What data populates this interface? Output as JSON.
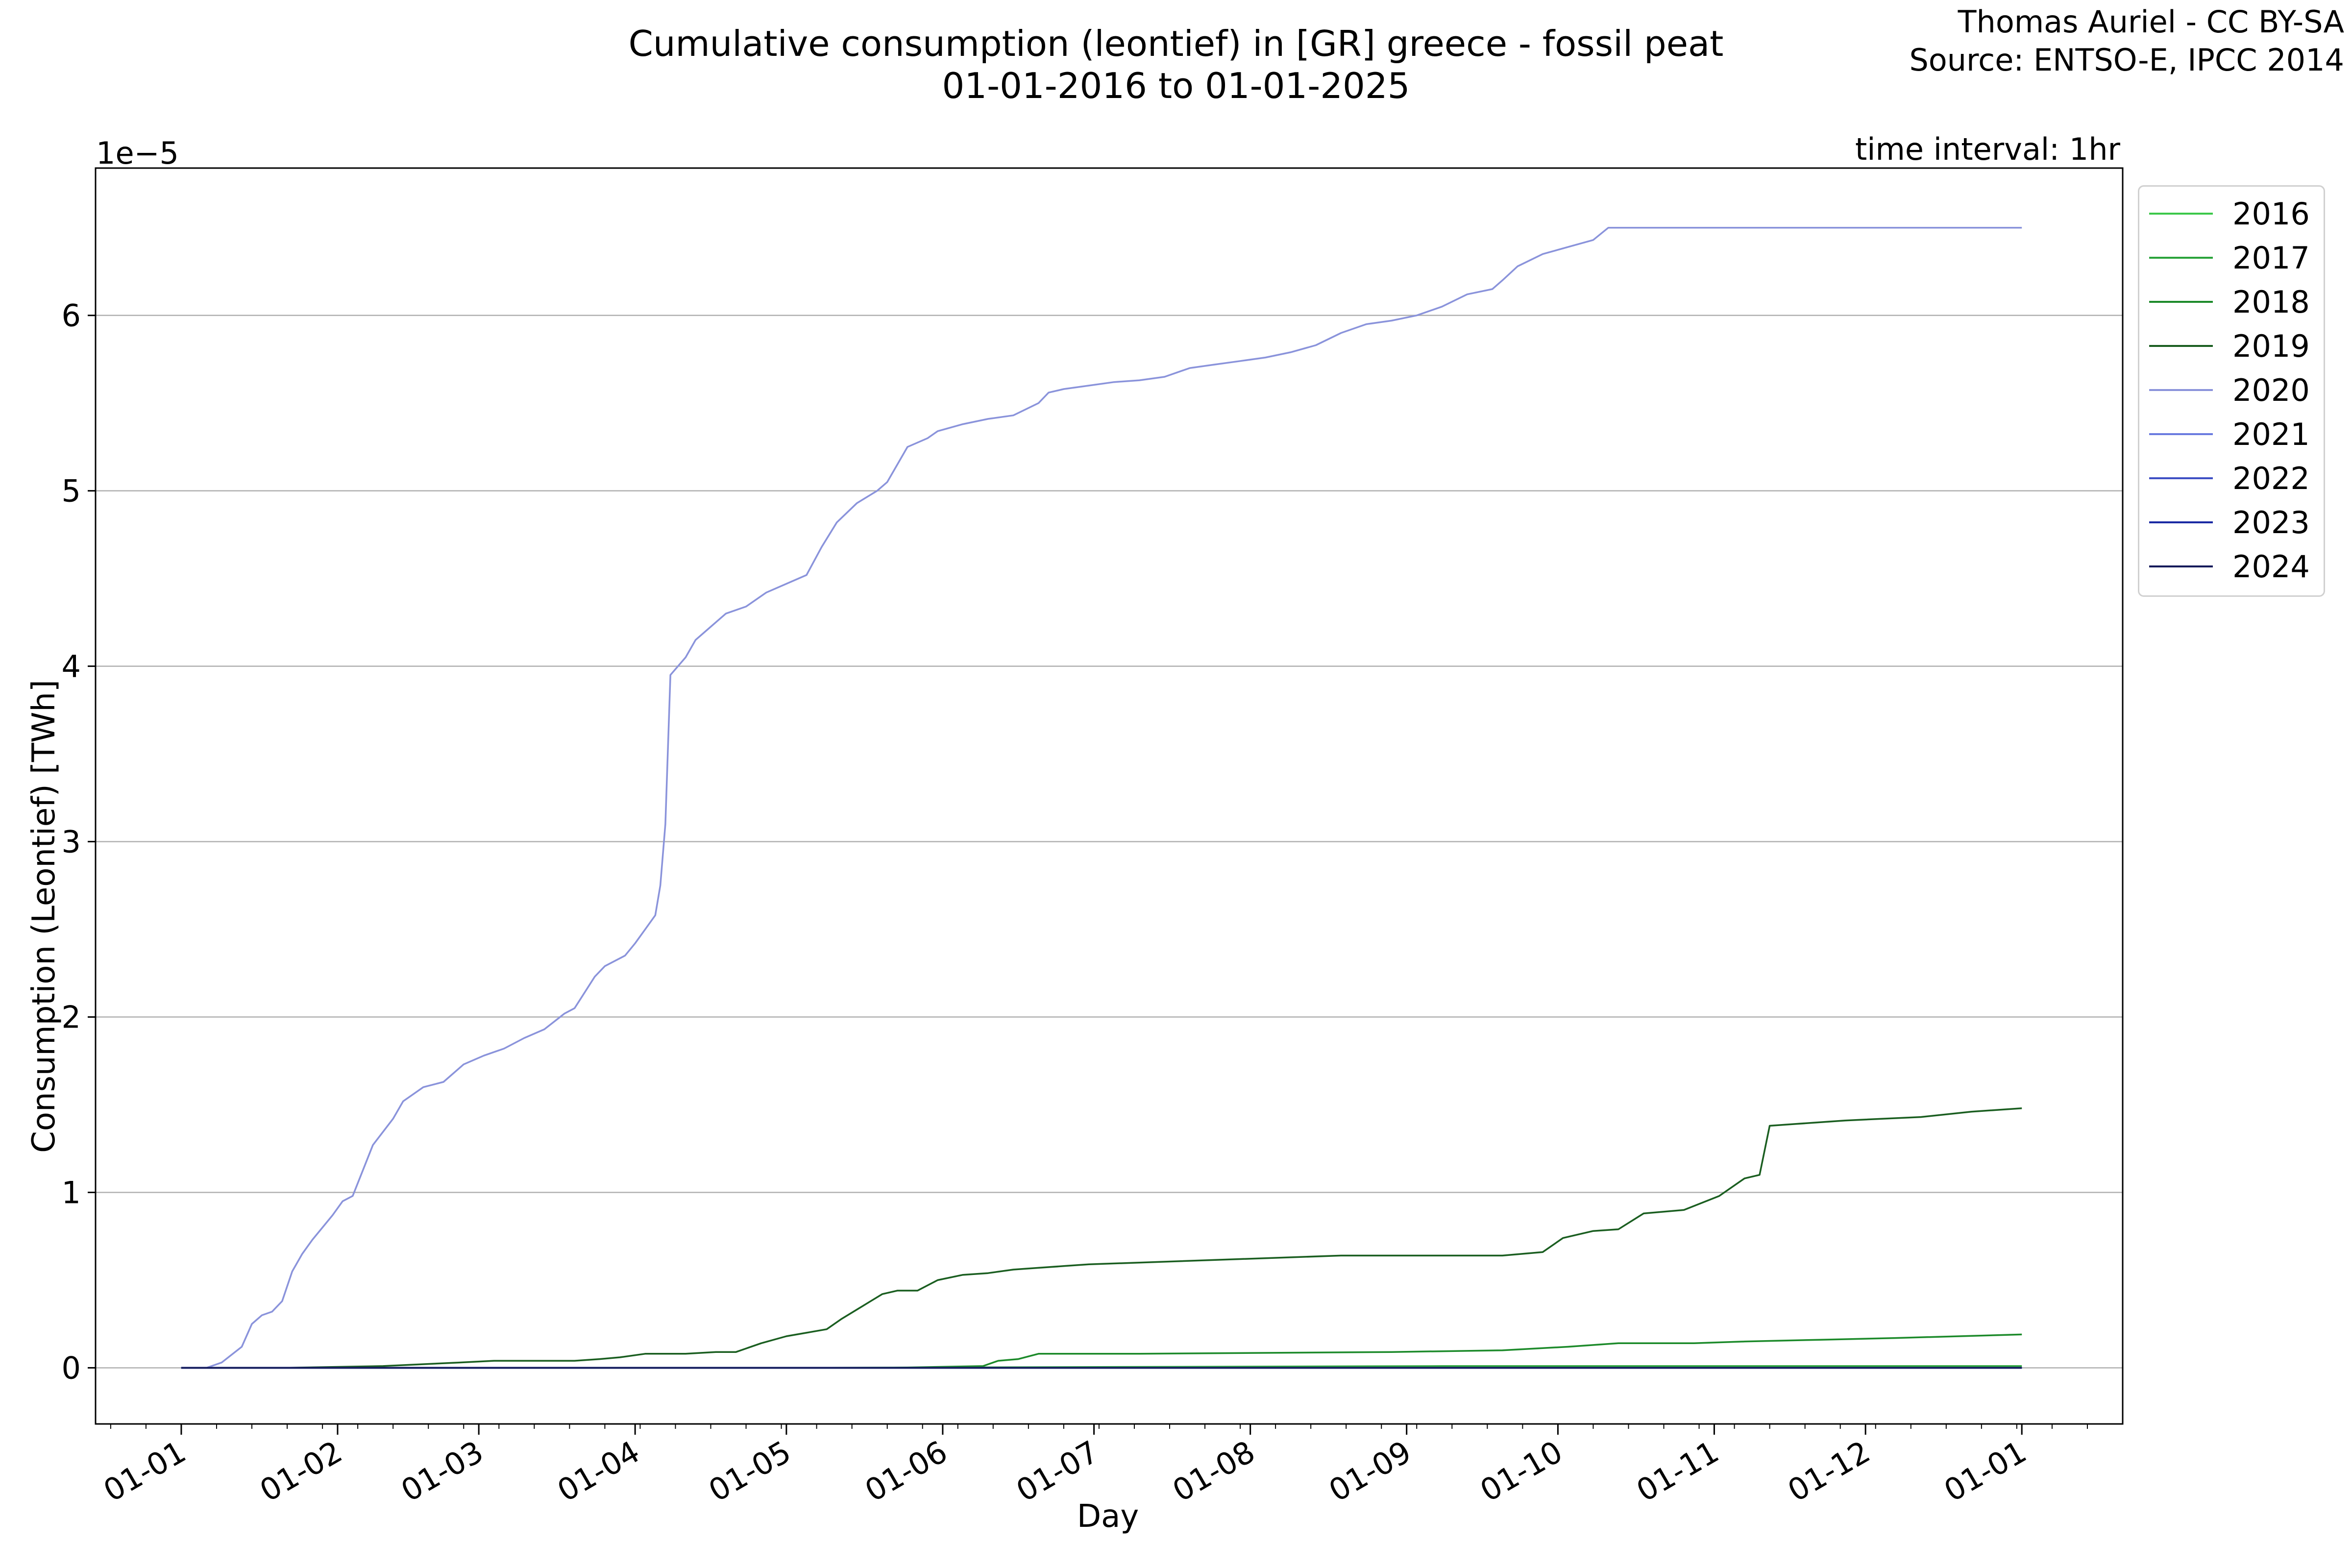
{
  "header": {
    "title_line1": "Cumulative consumption (leontief) in [GR] greece - fossil peat",
    "title_line2": "01-01-2016 to 01-01-2025",
    "credit_line1": "Thomas Auriel - CC BY-SA",
    "credit_line2": "Source: ENTSO-E, IPCC 2014"
  },
  "annotations": {
    "time_interval": "time interval: 1hr",
    "axis_offset": "1e−5"
  },
  "chart_data": {
    "type": "line",
    "title": "Cumulative consumption (leontief) in [GR] greece - fossil peat",
    "subtitle": "01-01-2016 to 01-01-2025",
    "xlabel": "Day",
    "ylabel": "Consumption (Leontief) [TWh]",
    "y_scale_note": "1e−5",
    "x_unit": "day of year",
    "xlim": [
      -17,
      385
    ],
    "ylim": [
      -0.32,
      6.84
    ],
    "x_ticks": [
      {
        "label": "01-01",
        "day": 0
      },
      {
        "label": "01-02",
        "day": 31
      },
      {
        "label": "01-03",
        "day": 59
      },
      {
        "label": "01-04",
        "day": 90
      },
      {
        "label": "01-05",
        "day": 120
      },
      {
        "label": "01-06",
        "day": 151
      },
      {
        "label": "01-07",
        "day": 181
      },
      {
        "label": "01-08",
        "day": 212
      },
      {
        "label": "01-09",
        "day": 243
      },
      {
        "label": "01-10",
        "day": 273
      },
      {
        "label": "01-11",
        "day": 304
      },
      {
        "label": "01-12",
        "day": 334
      },
      {
        "label": "01-01",
        "day": 365
      }
    ],
    "y_ticks": [
      0,
      1,
      2,
      3,
      4,
      5,
      6
    ],
    "grid": "horizontal",
    "legend_position": "outside right, top",
    "series": [
      {
        "name": "2016",
        "color": "#3cc84a",
        "points": [
          [
            0,
            0
          ],
          [
            365,
            0
          ]
        ]
      },
      {
        "name": "2017",
        "color": "#2aa33a",
        "points": [
          [
            0,
            0
          ],
          [
            120,
            0
          ],
          [
            250,
            0.01
          ],
          [
            365,
            0.01
          ]
        ]
      },
      {
        "name": "2018",
        "color": "#1c8a2a",
        "points": [
          [
            0,
            0
          ],
          [
            140,
            0
          ],
          [
            159,
            0.01
          ],
          [
            162,
            0.04
          ],
          [
            166,
            0.05
          ],
          [
            170,
            0.08
          ],
          [
            190,
            0.08
          ],
          [
            240,
            0.09
          ],
          [
            262,
            0.1
          ],
          [
            275,
            0.12
          ],
          [
            285,
            0.14
          ],
          [
            293,
            0.14
          ],
          [
            300,
            0.14
          ],
          [
            310,
            0.15
          ],
          [
            325,
            0.16
          ],
          [
            340,
            0.17
          ],
          [
            365,
            0.19
          ]
        ]
      },
      {
        "name": "2019",
        "color": "#1a5e20",
        "points": [
          [
            0,
            0
          ],
          [
            20,
            0
          ],
          [
            40,
            0.01
          ],
          [
            55,
            0.03
          ],
          [
            62,
            0.04
          ],
          [
            78,
            0.04
          ],
          [
            83,
            0.05
          ],
          [
            87,
            0.06
          ],
          [
            92,
            0.08
          ],
          [
            100,
            0.08
          ],
          [
            106,
            0.09
          ],
          [
            110,
            0.09
          ],
          [
            115,
            0.14
          ],
          [
            120,
            0.18
          ],
          [
            124,
            0.2
          ],
          [
            128,
            0.22
          ],
          [
            131,
            0.28
          ],
          [
            135,
            0.35
          ],
          [
            139,
            0.42
          ],
          [
            142,
            0.44
          ],
          [
            146,
            0.44
          ],
          [
            150,
            0.5
          ],
          [
            155,
            0.53
          ],
          [
            160,
            0.54
          ],
          [
            165,
            0.56
          ],
          [
            170,
            0.57
          ],
          [
            175,
            0.58
          ],
          [
            180,
            0.59
          ],
          [
            190,
            0.6
          ],
          [
            210,
            0.62
          ],
          [
            230,
            0.64
          ],
          [
            262,
            0.64
          ],
          [
            270,
            0.66
          ],
          [
            274,
            0.74
          ],
          [
            280,
            0.78
          ],
          [
            285,
            0.79
          ],
          [
            290,
            0.88
          ],
          [
            298,
            0.9
          ],
          [
            305,
            0.98
          ],
          [
            310,
            1.08
          ],
          [
            313,
            1.1
          ],
          [
            315,
            1.38
          ],
          [
            320,
            1.39
          ],
          [
            330,
            1.41
          ],
          [
            345,
            1.43
          ],
          [
            355,
            1.46
          ],
          [
            365,
            1.48
          ]
        ]
      },
      {
        "name": "2020",
        "color": "#8a93db",
        "points": [
          [
            0,
            0
          ],
          [
            5,
            0
          ],
          [
            8,
            0.03
          ],
          [
            12,
            0.12
          ],
          [
            14,
            0.25
          ],
          [
            16,
            0.3
          ],
          [
            18,
            0.32
          ],
          [
            20,
            0.38
          ],
          [
            22,
            0.55
          ],
          [
            24,
            0.65
          ],
          [
            26,
            0.73
          ],
          [
            28,
            0.8
          ],
          [
            30,
            0.87
          ],
          [
            32,
            0.95
          ],
          [
            34,
            0.98
          ],
          [
            38,
            1.27
          ],
          [
            42,
            1.42
          ],
          [
            44,
            1.52
          ],
          [
            48,
            1.6
          ],
          [
            52,
            1.63
          ],
          [
            56,
            1.73
          ],
          [
            60,
            1.78
          ],
          [
            64,
            1.82
          ],
          [
            68,
            1.88
          ],
          [
            72,
            1.93
          ],
          [
            76,
            2.02
          ],
          [
            78,
            2.05
          ],
          [
            82,
            2.23
          ],
          [
            84,
            2.29
          ],
          [
            88,
            2.35
          ],
          [
            90,
            2.42
          ],
          [
            92,
            2.5
          ],
          [
            94,
            2.58
          ],
          [
            95,
            2.75
          ],
          [
            96,
            3.1
          ],
          [
            97,
            3.95
          ],
          [
            100,
            4.05
          ],
          [
            102,
            4.15
          ],
          [
            104,
            4.2
          ],
          [
            108,
            4.3
          ],
          [
            112,
            4.34
          ],
          [
            116,
            4.42
          ],
          [
            120,
            4.47
          ],
          [
            124,
            4.52
          ],
          [
            127,
            4.68
          ],
          [
            130,
            4.82
          ],
          [
            134,
            4.93
          ],
          [
            138,
            5.0
          ],
          [
            140,
            5.05
          ],
          [
            142,
            5.15
          ],
          [
            144,
            5.25
          ],
          [
            148,
            5.3
          ],
          [
            150,
            5.34
          ],
          [
            155,
            5.38
          ],
          [
            160,
            5.41
          ],
          [
            165,
            5.43
          ],
          [
            170,
            5.5
          ],
          [
            172,
            5.56
          ],
          [
            175,
            5.58
          ],
          [
            180,
            5.6
          ],
          [
            185,
            5.62
          ],
          [
            190,
            5.63
          ],
          [
            195,
            5.65
          ],
          [
            200,
            5.7
          ],
          [
            205,
            5.72
          ],
          [
            210,
            5.74
          ],
          [
            215,
            5.76
          ],
          [
            220,
            5.79
          ],
          [
            225,
            5.83
          ],
          [
            230,
            5.9
          ],
          [
            235,
            5.95
          ],
          [
            240,
            5.97
          ],
          [
            245,
            6.0
          ],
          [
            250,
            6.05
          ],
          [
            255,
            6.12
          ],
          [
            260,
            6.15
          ],
          [
            262,
            6.2
          ],
          [
            265,
            6.28
          ],
          [
            270,
            6.35
          ],
          [
            275,
            6.39
          ],
          [
            280,
            6.43
          ],
          [
            283,
            6.5
          ],
          [
            300,
            6.5
          ],
          [
            320,
            6.5
          ],
          [
            340,
            6.5
          ],
          [
            365,
            6.5
          ]
        ]
      },
      {
        "name": "2021",
        "color": "#6b7be0",
        "points": [
          [
            0,
            0
          ],
          [
            365,
            0
          ]
        ]
      },
      {
        "name": "2022",
        "color": "#3e4fc4",
        "points": [
          [
            0,
            0
          ],
          [
            365,
            0
          ]
        ]
      },
      {
        "name": "2023",
        "color": "#1a2aa3",
        "points": [
          [
            0,
            0
          ],
          [
            365,
            0
          ]
        ]
      },
      {
        "name": "2024",
        "color": "#141a5a",
        "points": [
          [
            0,
            0
          ],
          [
            365,
            0
          ]
        ]
      }
    ]
  }
}
